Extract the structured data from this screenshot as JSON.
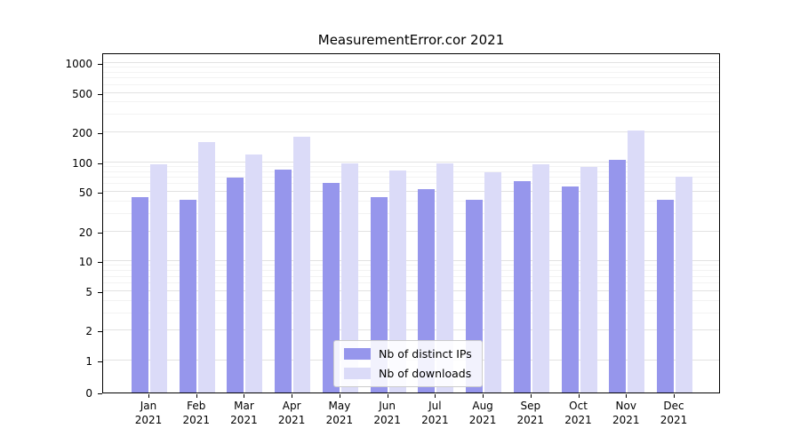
{
  "title": "MeasurementError.cor 2021",
  "chart_data": {
    "type": "bar",
    "title": "MeasurementError.cor 2021",
    "yscale": "symlog",
    "ylim": [
      0,
      1000
    ],
    "yticks": [
      0,
      1,
      2,
      5,
      10,
      20,
      50,
      100,
      200,
      500,
      1000
    ],
    "grid": true,
    "legend_position": "lower center",
    "categories": [
      "Jan",
      "Feb",
      "Mar",
      "Apr",
      "May",
      "Jun",
      "Jul",
      "Aug",
      "Sep",
      "Oct",
      "Nov",
      "Dec"
    ],
    "year": "2021",
    "series": [
      {
        "name": "Nb of distinct IPs",
        "color": "#9696ec",
        "values": [
          44,
          42,
          70,
          85,
          62,
          44,
          53,
          42,
          65,
          57,
          105,
          42
        ]
      },
      {
        "name": "Nb of downloads",
        "color": "#dbdbf8",
        "values": [
          95,
          160,
          120,
          180,
          98,
          82,
          98,
          80,
          95,
          90,
          210,
          72
        ]
      }
    ]
  }
}
